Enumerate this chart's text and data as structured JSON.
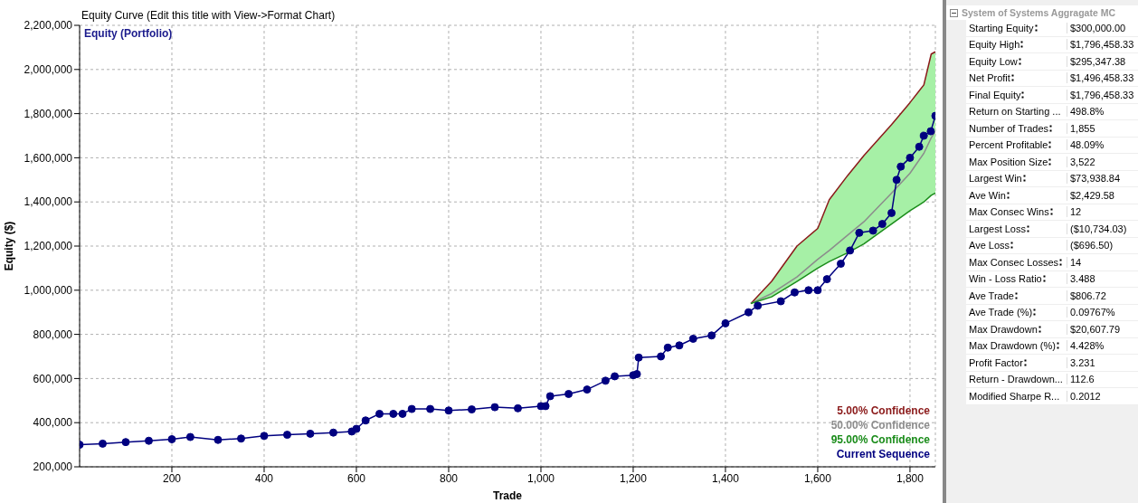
{
  "chart_data": [
    {
      "type": "line",
      "title": "Equity Curve (Edit this title with View->Format Chart)",
      "subtitle": "Equity (Portfolio)",
      "xlabel": "Trade",
      "ylabel": "Equity ($)",
      "xlim": [
        0,
        1855
      ],
      "xticks": [
        200,
        400,
        600,
        800,
        {
          "value": 1000,
          "label": "1,000"
        },
        {
          "value": 1200,
          "label": "1,200"
        },
        {
          "value": 1400,
          "label": "1,400"
        },
        {
          "value": 1600,
          "label": "1,600"
        },
        {
          "value": 1800,
          "label": "1,800"
        }
      ],
      "ylim": [
        200000,
        2200000
      ],
      "yticks": [
        {
          "value": 200000,
          "label": "200,000"
        },
        {
          "value": 400000,
          "label": "400,000"
        },
        {
          "value": 600000,
          "label": "600,000"
        },
        {
          "value": 800000,
          "label": "800,000"
        },
        {
          "value": 1000000,
          "label": "1,000,000"
        },
        {
          "value": 1200000,
          "label": "1,200,000"
        },
        {
          "value": 1400000,
          "label": "1,400,000"
        },
        {
          "value": 1600000,
          "label": "1,600,000"
        },
        {
          "value": 1800000,
          "label": "1,800,000"
        },
        {
          "value": 2000000,
          "label": "2,000,000"
        },
        {
          "value": 2200000,
          "label": "2,200,000"
        }
      ],
      "grid": true,
      "legend": "bottom right",
      "series": [
        {
          "name": "5.00% Confidence",
          "color": "#8b1a1a",
          "x": [
            1455,
            1500,
            1555,
            1600,
            1625,
            1665,
            1700,
            1760,
            1800,
            1830,
            1846,
            1855
          ],
          "values": [
            940000,
            1040000,
            1200000,
            1280000,
            1410000,
            1520000,
            1610000,
            1750000,
            1850000,
            1930000,
            2070000,
            2080000
          ]
        },
        {
          "name": "50.00% Confidence",
          "color": "#8c8c8c",
          "x": [
            1455,
            1500,
            1555,
            1600,
            1625,
            1665,
            1700,
            1760,
            1800,
            1830,
            1846,
            1855
          ],
          "values": [
            940000,
            985000,
            1060000,
            1140000,
            1180000,
            1250000,
            1310000,
            1440000,
            1530000,
            1620000,
            1690000,
            1720000
          ],
          "lower": [
            940000,
            970000,
            1040000,
            1100000,
            1130000,
            1170000,
            1210000,
            1300000,
            1360000,
            1400000,
            1430000,
            1440000
          ],
          "upper": [
            940000,
            1040000,
            1200000,
            1280000,
            1410000,
            1520000,
            1610000,
            1750000,
            1850000,
            1930000,
            2070000,
            2080000
          ]
        },
        {
          "name": "95.00% Confidence",
          "color": "#1a8c1a",
          "x": [
            1455,
            1500,
            1555,
            1600,
            1625,
            1665,
            1700,
            1760,
            1800,
            1830,
            1846,
            1855
          ],
          "values": [
            940000,
            970000,
            1040000,
            1100000,
            1130000,
            1170000,
            1210000,
            1300000,
            1360000,
            1400000,
            1430000,
            1440000
          ]
        },
        {
          "name": "Current Sequence",
          "color": "#000080",
          "marker": "circle",
          "x": [
            0,
            50,
            100,
            150,
            200,
            240,
            300,
            350,
            400,
            450,
            500,
            550,
            590,
            600,
            620,
            650,
            680,
            700,
            720,
            760,
            800,
            850,
            900,
            950,
            1000,
            1010,
            1020,
            1060,
            1100,
            1140,
            1160,
            1200,
            1208,
            1212,
            1260,
            1275,
            1300,
            1330,
            1370,
            1400,
            1450,
            1470,
            1520,
            1550,
            1580,
            1600,
            1620,
            1650,
            1670,
            1690,
            1720,
            1740,
            1760,
            1771,
            1780,
            1800,
            1820,
            1830,
            1845,
            1855
          ],
          "values": [
            300000,
            305000,
            312000,
            318000,
            325000,
            335000,
            322000,
            328000,
            340000,
            345000,
            350000,
            355000,
            360000,
            372000,
            410000,
            440000,
            440000,
            440000,
            462000,
            462000,
            455000,
            460000,
            470000,
            465000,
            475000,
            475000,
            520000,
            530000,
            550000,
            590000,
            610000,
            615000,
            620000,
            695000,
            700000,
            740000,
            750000,
            780000,
            795000,
            850000,
            900000,
            930000,
            950000,
            990000,
            1000000,
            1000000,
            1050000,
            1120000,
            1180000,
            1260000,
            1270000,
            1300000,
            1350000,
            1500000,
            1560000,
            1600000,
            1650000,
            1700000,
            1720000,
            1790000
          ]
        }
      ]
    },
    {
      "type": "other",
      "title": "System of Systems Aggragate MC",
      "categories": [
        "Starting Equity",
        "Equity High",
        "Equity Low",
        "Net Profit",
        "Final Equity",
        "Return on Starting ...",
        "Number of Trades",
        "Percent Profitable",
        "Max Position Size",
        "Largest Win",
        "Ave Win",
        "Max Consec Wins",
        "Largest Loss",
        "Ave Loss",
        "Max Consec Losses",
        "Win - Loss Ratio",
        "Ave Trade",
        "Ave Trade (%)",
        "Max Drawdown",
        "Max Drawdown (%)",
        "Profit Factor",
        "Return - Drawdown...",
        "Modified Sharpe R..."
      ],
      "annotations": [
        "$300,000.00",
        "$1,796,458.33",
        "$295,347.38",
        "$1,496,458.33",
        "$1,796,458.33",
        "498.8%",
        "1,855",
        "48.09%",
        "3,522",
        "$73,938.84",
        "$2,429.58",
        "12",
        "($10,734.03)",
        "($696.50)",
        "14",
        "3.488",
        "$806.72",
        "0.09767%",
        "$20,607.79",
        "4.428%",
        "3.231",
        "112.6",
        "0.2012"
      ]
    }
  ]
}
